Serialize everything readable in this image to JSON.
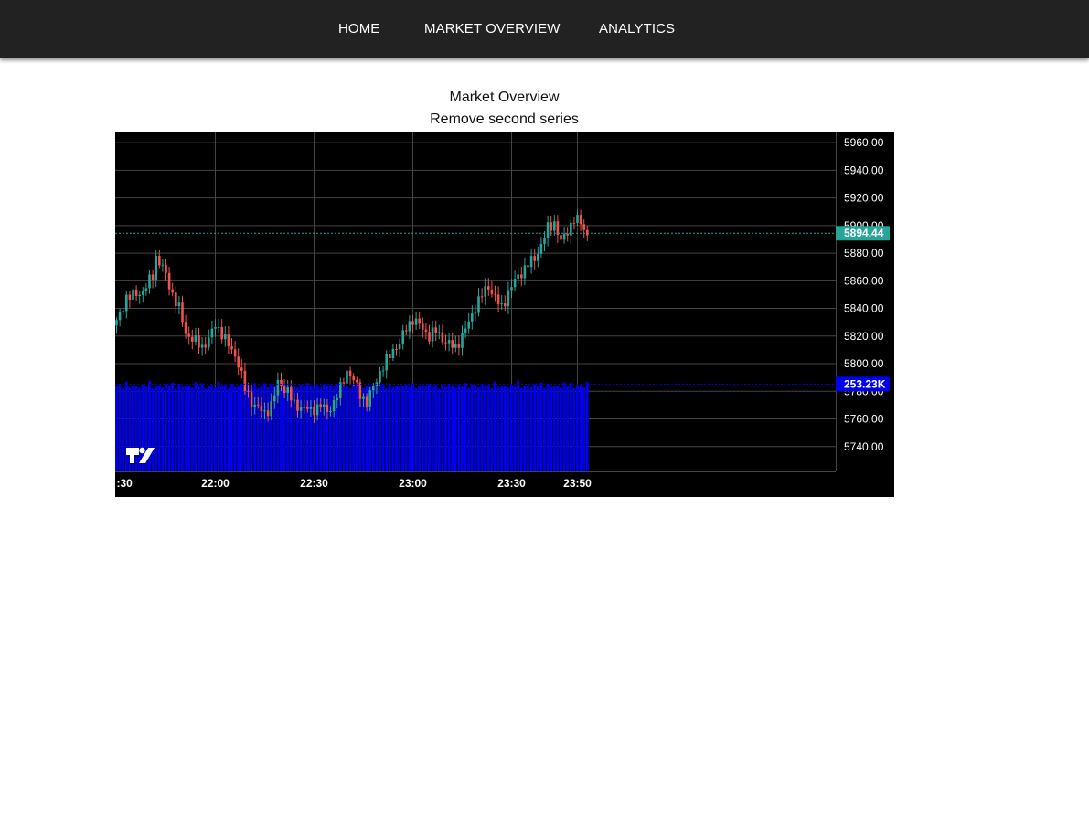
{
  "nav": {
    "items": [
      {
        "label": "HOME"
      },
      {
        "label": "MARKET OVERVIEW"
      },
      {
        "label": "ANALYTICS"
      }
    ]
  },
  "page": {
    "title": "Market Overview",
    "subtitle": "Remove second series"
  },
  "colors": {
    "up": "#26a69a",
    "down": "#ef5350",
    "volume": "#0000ee",
    "background": "#000000",
    "grid": "#444444",
    "nav_background": "#222222"
  },
  "chart_data": {
    "type": "candlestick",
    "price_axis": {
      "ticks": [
        "5960.00",
        "5940.00",
        "5920.00",
        "5900.00",
        "5880.00",
        "5860.00",
        "5840.00",
        "5820.00",
        "5800.00",
        "5780.00",
        "5760.00",
        "5740.00"
      ],
      "range": [
        5722,
        5968
      ]
    },
    "time_axis": {
      "ticks": [
        {
          "label": ":30",
          "minutes": 1290
        },
        {
          "label": "22:00",
          "minutes": 1320
        },
        {
          "label": "22:30",
          "minutes": 1350
        },
        {
          "label": "23:00",
          "minutes": 1380
        },
        {
          "label": "23:30",
          "minutes": 1410
        },
        {
          "label": "23:50",
          "minutes": 1430
        }
      ],
      "bar_interval_minutes": 1,
      "first_bar_minutes": 1290,
      "last_bar_minutes": 1433
    },
    "last_price": {
      "value": 5894.44,
      "label": "5894.44"
    },
    "last_volume": {
      "label": "253.23K"
    },
    "series": [
      {
        "kind": "candlestick"
      },
      {
        "kind": "volume-histogram"
      }
    ],
    "price_path": [
      [
        0,
        5830
      ],
      [
        3,
        5848
      ],
      [
        8,
        5852
      ],
      [
        11,
        5864
      ],
      [
        12,
        5877
      ],
      [
        14,
        5870
      ],
      [
        17,
        5850
      ],
      [
        19,
        5840
      ],
      [
        21,
        5822
      ],
      [
        23,
        5818
      ],
      [
        26,
        5812
      ],
      [
        28,
        5818
      ],
      [
        30,
        5828
      ],
      [
        32,
        5822
      ],
      [
        34,
        5813
      ],
      [
        36,
        5806
      ],
      [
        37,
        5800
      ],
      [
        39,
        5782
      ],
      [
        41,
        5772
      ],
      [
        43,
        5768
      ],
      [
        45,
        5764
      ],
      [
        47,
        5770
      ],
      [
        49,
        5786
      ],
      [
        52,
        5780
      ],
      [
        54,
        5770
      ],
      [
        57,
        5768
      ],
      [
        59,
        5766
      ],
      [
        62,
        5770
      ],
      [
        64,
        5765
      ],
      [
        66,
        5772
      ],
      [
        68,
        5782
      ],
      [
        70,
        5795
      ],
      [
        72,
        5788
      ],
      [
        74,
        5778
      ],
      [
        76,
        5772
      ],
      [
        78,
        5783
      ],
      [
        80,
        5794
      ],
      [
        82,
        5802
      ],
      [
        84,
        5810
      ],
      [
        86,
        5815
      ],
      [
        88,
        5826
      ],
      [
        90,
        5832
      ],
      [
        92,
        5828
      ],
      [
        95,
        5820
      ],
      [
        97,
        5824
      ],
      [
        99,
        5818
      ],
      [
        101,
        5814
      ],
      [
        103,
        5812
      ],
      [
        105,
        5820
      ],
      [
        107,
        5830
      ],
      [
        109,
        5841
      ],
      [
        111,
        5850
      ],
      [
        113,
        5856
      ],
      [
        115,
        5848
      ],
      [
        117,
        5840
      ],
      [
        119,
        5852
      ],
      [
        121,
        5860
      ],
      [
        123,
        5866
      ],
      [
        125,
        5872
      ],
      [
        127,
        5876
      ],
      [
        129,
        5886
      ],
      [
        131,
        5898
      ],
      [
        133,
        5902
      ],
      [
        135,
        5888
      ],
      [
        137,
        5896
      ],
      [
        139,
        5905
      ],
      [
        141,
        5902
      ],
      [
        143,
        5893
      ],
      [
        145,
        5886
      ],
      [
        147,
        5880
      ],
      [
        149,
        5884
      ],
      [
        151,
        5882
      ],
      [
        153,
        5876
      ],
      [
        155,
        5880
      ],
      [
        157,
        5884
      ],
      [
        159,
        5886
      ],
      [
        161,
        5892
      ],
      [
        163,
        5904
      ],
      [
        165,
        5910
      ],
      [
        167,
        5900
      ],
      [
        169,
        5898
      ],
      [
        171,
        5905
      ],
      [
        173,
        5914
      ],
      [
        175,
        5910
      ],
      [
        177,
        5900
      ],
      [
        179,
        5895
      ],
      [
        181,
        5894.44
      ]
    ],
    "volume_pattern": [
      253,
      255,
      244,
      258,
      248,
      250,
      252,
      246,
      256,
      249,
      260,
      245,
      251,
      254,
      247,
      257
    ]
  }
}
